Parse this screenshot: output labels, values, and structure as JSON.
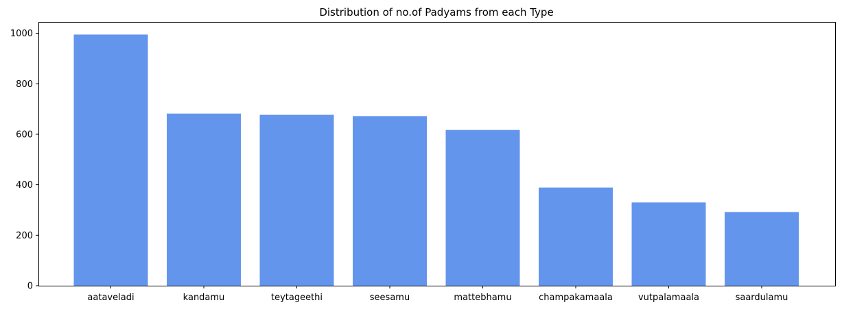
{
  "chart_data": {
    "type": "bar",
    "title": "Distribution of no.of Padyams from each Type",
    "xlabel": "",
    "ylabel": "",
    "categories": [
      "aataveladi",
      "kandamu",
      "teytageethi",
      "seesamu",
      "mattebhamu",
      "champakamaala",
      "vutpalamaala",
      "saardulamu"
    ],
    "values": [
      995,
      682,
      677,
      672,
      617,
      389,
      330,
      292
    ],
    "ylim": [
      0,
      1045
    ],
    "yticks": [
      0,
      200,
      400,
      600,
      800,
      1000
    ],
    "grid": false,
    "legend": "none",
    "bar_color": "#6495ED"
  }
}
